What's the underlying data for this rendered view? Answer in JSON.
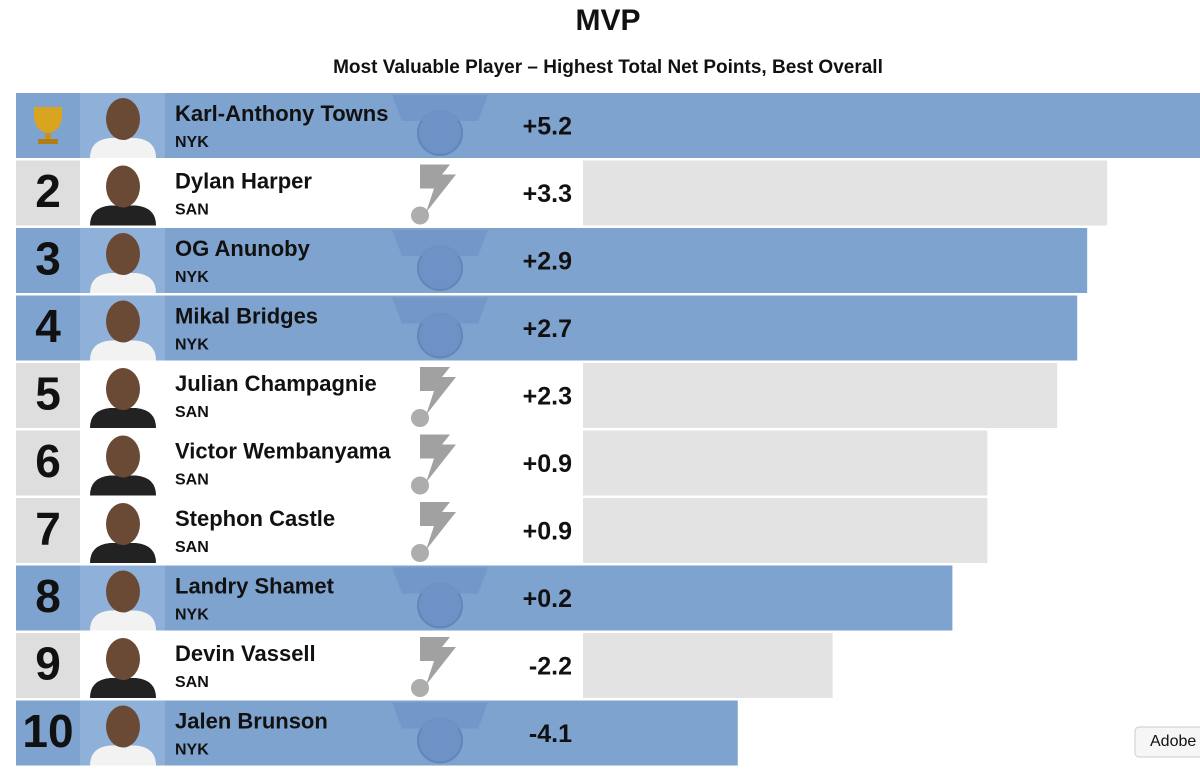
{
  "chart_data": {
    "type": "bar",
    "title": "MVP",
    "subtitle": "Most Valuable Player – Highest Total Net Points, Best Overall",
    "categories": [
      "Karl-Anthony Towns",
      "Dylan Harper",
      "OG Anunoby",
      "Mikal Bridges",
      "Julian Champagnie",
      "Victor Wembanyama",
      "Stephon Castle",
      "Landry Shamet",
      "Devin Vassell",
      "Jalen Brunson"
    ],
    "ranks": [
      null,
      2,
      3,
      4,
      5,
      6,
      7,
      8,
      9,
      10
    ],
    "teams": [
      "NYK",
      "SAN",
      "NYK",
      "NYK",
      "SAN",
      "SAN",
      "SAN",
      "NYK",
      "SAN",
      "NYK"
    ],
    "values": [
      5.2,
      3.3,
      2.9,
      2.7,
      2.3,
      0.9,
      0.9,
      0.2,
      -2.2,
      -4.1
    ],
    "value_labels": [
      "+5.2",
      "+3.3",
      "+2.9",
      "+2.7",
      "+2.3",
      "+0.9",
      "+0.9",
      "+0.2",
      "-2.2",
      "-4.1"
    ],
    "team_colors": {
      "NYK": "#7fa3cf",
      "SAN": "#e3e3e3"
    },
    "xlim": [
      -7.2,
      5.2
    ]
  },
  "overlay_button": "Adobe"
}
